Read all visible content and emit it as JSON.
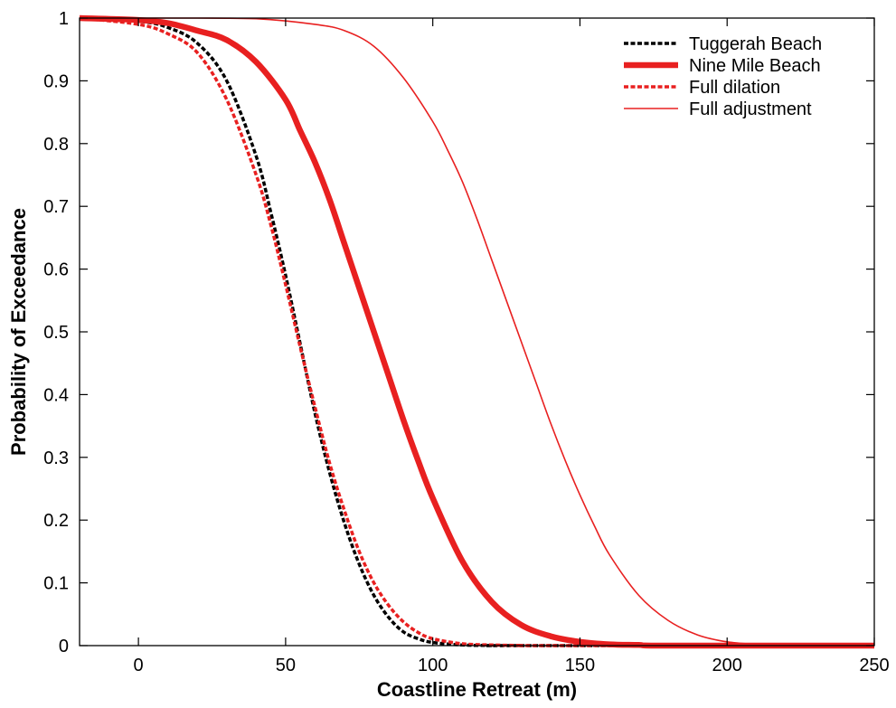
{
  "chart_data": {
    "type": "line",
    "title": "",
    "xlabel": "Coastline Retreat (m)",
    "ylabel": "Probability of Exceedance",
    "xlim": [
      -20,
      250
    ],
    "ylim": [
      0,
      1
    ],
    "xticks": [
      0,
      50,
      100,
      150,
      200,
      250
    ],
    "yticks": [
      0,
      0.1,
      0.2,
      0.3,
      0.4,
      0.5,
      0.6,
      0.7,
      0.8,
      0.9,
      1
    ],
    "xtick_labels": [
      "0",
      "50",
      "100",
      "150",
      "200",
      "250"
    ],
    "ytick_labels": [
      "0",
      "0.1",
      "0.2",
      "0.3",
      "0.4",
      "0.5",
      "0.6",
      "0.7",
      "0.8",
      "0.9",
      "1"
    ],
    "grid": false,
    "legend_position": "top-right",
    "series": [
      {
        "name": "Tuggerah Beach",
        "color": "#000000",
        "style": "dashed",
        "weight": "medium",
        "x": [
          -20,
          0,
          10,
          20,
          30,
          40,
          45,
          50,
          55,
          60,
          65,
          70,
          75,
          80,
          85,
          90,
          95,
          100,
          110,
          120,
          130,
          250
        ],
        "y": [
          1.0,
          0.995,
          0.985,
          0.96,
          0.9,
          0.78,
          0.69,
          0.59,
          0.48,
          0.37,
          0.275,
          0.195,
          0.13,
          0.08,
          0.045,
          0.022,
          0.011,
          0.005,
          0.001,
          0.0002,
          0.0,
          0.0
        ]
      },
      {
        "name": "Nine Mile Beach",
        "color": "#e82020",
        "style": "solid",
        "weight": "thick",
        "x": [
          -20,
          0,
          10,
          20,
          30,
          40,
          50,
          55,
          60,
          65,
          70,
          75,
          80,
          85,
          90,
          95,
          100,
          110,
          120,
          130,
          140,
          150,
          160,
          170,
          180,
          250
        ],
        "y": [
          1.0,
          0.997,
          0.992,
          0.98,
          0.965,
          0.93,
          0.87,
          0.82,
          0.77,
          0.71,
          0.64,
          0.57,
          0.5,
          0.43,
          0.36,
          0.295,
          0.235,
          0.135,
          0.07,
          0.033,
          0.015,
          0.006,
          0.002,
          0.001,
          0.0,
          0.0
        ]
      },
      {
        "name": "Full dilation",
        "color": "#e82020",
        "style": "dashed",
        "weight": "medium",
        "x": [
          -20,
          0,
          10,
          20,
          30,
          40,
          45,
          50,
          55,
          60,
          65,
          70,
          75,
          80,
          85,
          90,
          95,
          100,
          110,
          120,
          130,
          140,
          250
        ],
        "y": [
          1.0,
          0.99,
          0.975,
          0.945,
          0.87,
          0.75,
          0.67,
          0.575,
          0.475,
          0.38,
          0.29,
          0.215,
          0.15,
          0.1,
          0.064,
          0.038,
          0.021,
          0.011,
          0.003,
          0.001,
          0.0003,
          0.0,
          0.0
        ]
      },
      {
        "name": "Full adjustment",
        "color": "#e82020",
        "style": "solid",
        "weight": "thin",
        "x": [
          -20,
          0,
          20,
          40,
          60,
          70,
          80,
          90,
          100,
          105,
          110,
          115,
          120,
          125,
          130,
          135,
          140,
          145,
          150,
          155,
          160,
          170,
          180,
          190,
          200,
          210,
          220,
          250
        ],
        "y": [
          1.0,
          1.0,
          1.0,
          0.999,
          0.99,
          0.98,
          0.955,
          0.905,
          0.835,
          0.79,
          0.74,
          0.68,
          0.615,
          0.55,
          0.485,
          0.42,
          0.355,
          0.295,
          0.24,
          0.19,
          0.145,
          0.08,
          0.04,
          0.017,
          0.006,
          0.002,
          0.0,
          0.0
        ]
      }
    ]
  }
}
